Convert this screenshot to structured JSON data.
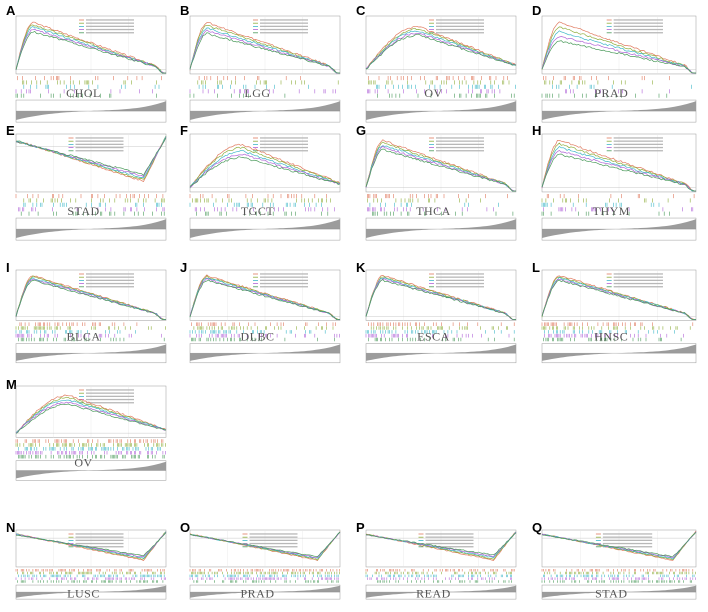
{
  "figure": {
    "panels": [
      {
        "letter": "A",
        "label": "CHOL",
        "shape": "early",
        "lines": 5,
        "spread": 0.1
      },
      {
        "letter": "B",
        "label": "LGG",
        "shape": "early",
        "lines": 5,
        "spread": 0.12
      },
      {
        "letter": "C",
        "label": "OV",
        "shape": "mid",
        "lines": 5,
        "spread": 0.1
      },
      {
        "letter": "D",
        "label": "PRAD",
        "shape": "early",
        "lines": 5,
        "spread": 0.2
      },
      {
        "letter": "E",
        "label": "STAD",
        "shape": "late",
        "lines": 5,
        "spread": 0.1
      },
      {
        "letter": "F",
        "label": "TGCT",
        "shape": "mid",
        "lines": 5,
        "spread": 0.15
      },
      {
        "letter": "G",
        "label": "THCA",
        "shape": "early",
        "lines": 5,
        "spread": 0.1
      },
      {
        "letter": "H",
        "label": "THYM",
        "shape": "early",
        "lines": 5,
        "spread": 0.15
      },
      {
        "letter": "I",
        "label": "BLCA",
        "shape": "early",
        "lines": 5,
        "spread": 0.06
      },
      {
        "letter": "J",
        "label": "DLBC",
        "shape": "early",
        "lines": 5,
        "spread": 0.06
      },
      {
        "letter": "K",
        "label": "ESCA",
        "shape": "early",
        "lines": 5,
        "spread": 0.06
      },
      {
        "letter": "L",
        "label": "HNSC",
        "shape": "early",
        "lines": 5,
        "spread": 0.06
      },
      {
        "letter": "M",
        "label": "OV",
        "shape": "mid",
        "lines": 5,
        "spread": 0.12
      },
      {
        "letter": "N",
        "label": "LUSC",
        "shape": "late",
        "lines": 5,
        "spread": 0.1
      },
      {
        "letter": "O",
        "label": "PRAD",
        "shape": "late",
        "lines": 5,
        "spread": 0.08
      },
      {
        "letter": "P",
        "label": "READ",
        "shape": "late",
        "lines": 5,
        "spread": 0.12
      },
      {
        "letter": "Q",
        "label": "STAD",
        "shape": "late",
        "lines": 5,
        "spread": 0.08
      }
    ],
    "colors": {
      "series": [
        "#e07a5f",
        "#8fae3c",
        "#3fb8c8",
        "#b064d8",
        "#4a9a5a"
      ],
      "frame": "#9a9a9a",
      "rank": "#9c9c9c"
    }
  }
}
